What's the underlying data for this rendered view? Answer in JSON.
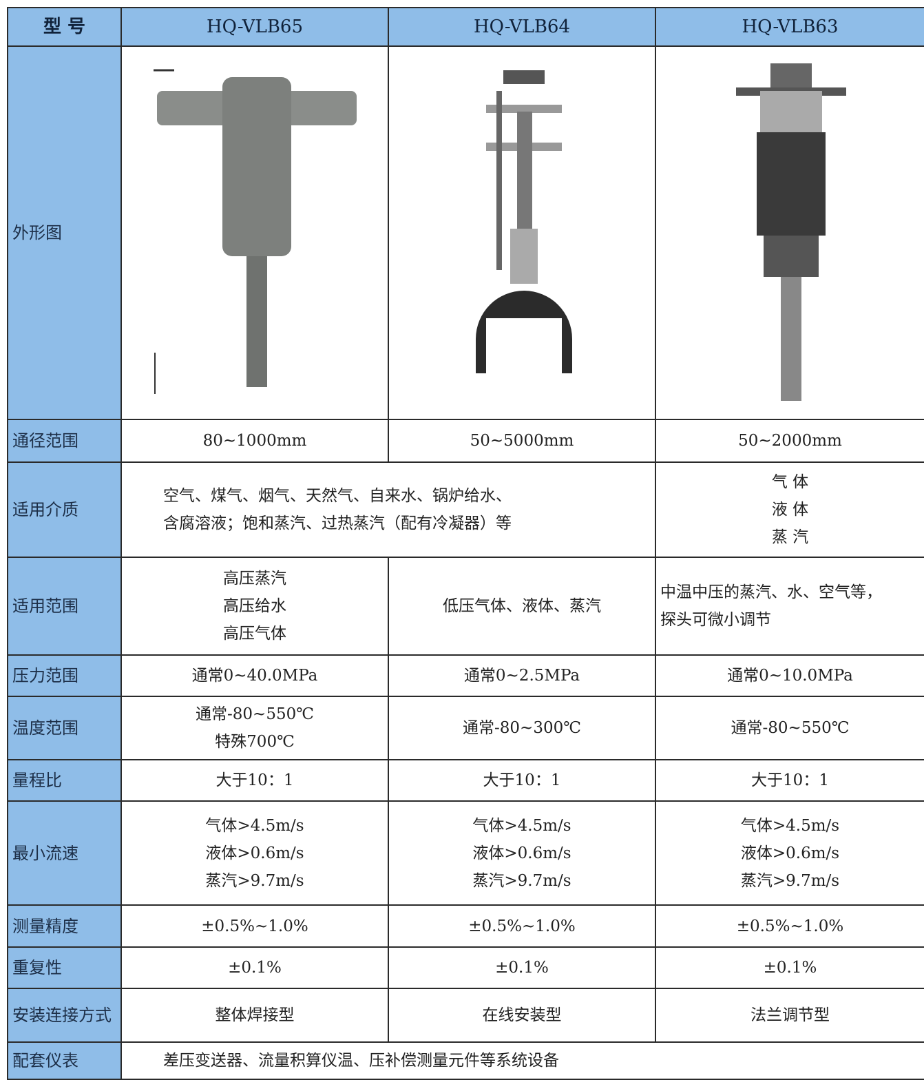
{
  "table": {
    "header": [
      "型 号",
      "HQ-VLB65",
      "HQ-VLB64",
      "HQ-VLB63"
    ],
    "image_label": "外形图",
    "rows": [
      {
        "label": "通径范围",
        "cells": [
          [
            "80~1000mm"
          ],
          [
            "50~5000mm"
          ],
          [
            "50~2000mm"
          ]
        ]
      },
      {
        "label": "适用介质",
        "cells": [
          [
            "空气、煤气、烟气、天然气、自来水、锅炉给水、",
            "含腐溶液；饱和蒸汽、过热蒸汽（配有冷凝器）等"
          ],
          [
            "气 体",
            "液 体",
            "蒸 汽"
          ]
        ]
      },
      {
        "label": "适用范围",
        "cells": [
          [
            "高压蒸汽",
            "高压给水",
            "高压气体"
          ],
          [
            "低压气体、液体、蒸汽"
          ],
          [
            "中温中压的蒸汽、水、空气等，",
            "探头可微小调节"
          ]
        ]
      },
      {
        "label": "压力范围",
        "cells": [
          [
            "通常0~40.0MPa"
          ],
          [
            "通常0~2.5MPa"
          ],
          [
            "通常0~10.0MPa"
          ]
        ]
      },
      {
        "label": "温度范围",
        "cells": [
          [
            "通常-80~550℃",
            "特殊700℃"
          ],
          [
            "通常-80~300℃"
          ],
          [
            "通常-80~550℃"
          ]
        ]
      },
      {
        "label": "量程比",
        "cells": [
          [
            "大于10：1"
          ],
          [
            "大于10：1"
          ],
          [
            "大于10：1"
          ]
        ]
      },
      {
        "label": "最小流速",
        "cells": [
          [
            "气体>4.5m/s",
            "液体>0.6m/s",
            "蒸汽>9.7m/s"
          ],
          [
            "气体>4.5m/s",
            "液体>0.6m/s",
            "蒸汽>9.7m/s"
          ],
          [
            "气体>4.5m/s",
            "液体>0.6m/s",
            "蒸汽>9.7m/s"
          ]
        ]
      },
      {
        "label": "测量精度",
        "cells": [
          [
            "±0.5%~1.0%"
          ],
          [
            "±0.5%~1.0%"
          ],
          [
            "±0.5%~1.0%"
          ]
        ]
      },
      {
        "label": "重复性",
        "cells": [
          [
            "±0.1%"
          ],
          [
            "±0.1%"
          ],
          [
            "±0.1%"
          ]
        ]
      },
      {
        "label": "安装连接方式",
        "cells": [
          [
            "整体焊接型"
          ],
          [
            "在线安装型"
          ],
          [
            "法兰调节型"
          ]
        ]
      },
      {
        "label": "配套仪表",
        "cells": [
          [
            "差压变送器、流量积算仪温、压补偿测量元件等系统设备"
          ]
        ]
      }
    ]
  }
}
